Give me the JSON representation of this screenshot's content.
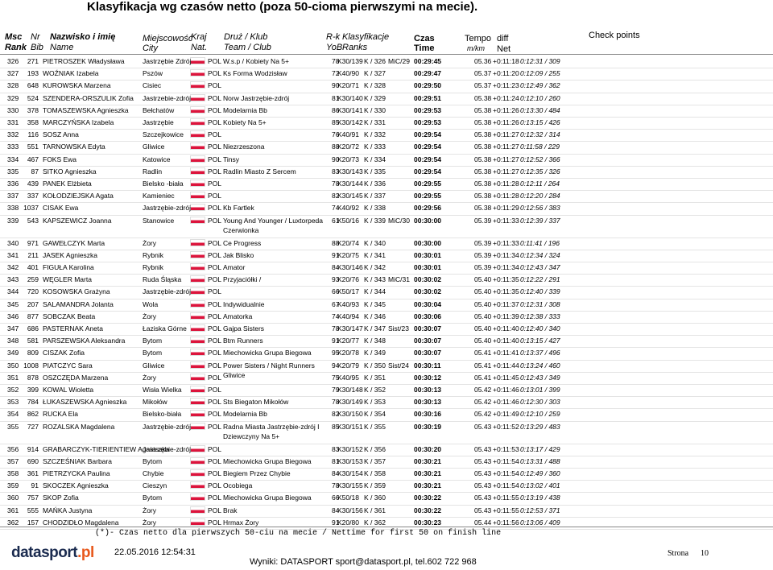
{
  "header": {
    "title": "Klasyfikacja wg czasów netto (poza 50-cioma pierwszymi na mecie).",
    "columns": {
      "msc": "Msc",
      "rank": "Rank",
      "nr": "Nr",
      "bib": "Bib",
      "name_pl": "Nazwisko i imię",
      "name": "Name",
      "city_pl": "Miejscowość",
      "city": "City",
      "nat_pl": "Kraj",
      "nat": "Nat.",
      "team_pl": "Druż / Klub",
      "team": "Team / Club",
      "yob_pl": "R-k",
      "yob": "YoB",
      "ranks_pl": "Klasyfikacje",
      "ranks": "Ranks",
      "time_pl": "Czas",
      "time": "Time",
      "pace_pl": "Tempo",
      "pace": "m/km",
      "diff": "diff",
      "net": "Net",
      "checkpoints": "Check points"
    }
  },
  "rows": [
    {
      "r": "326",
      "b": "271",
      "n": "PIETROSZEK Władysława",
      "c": "Jastrzębie Zdrój",
      "nat": "POL",
      "t": "W.s.p / Kobiety Na 5+",
      "y": "78",
      "k": "K30/139",
      "o": "K / 326",
      "x": "MiC/29",
      "tm": "00:29:45",
      "p": "05.36",
      "d": "+0:11:18",
      "net": "0:12:31 / 309"
    },
    {
      "r": "327",
      "b": "193",
      "n": "WOŹNIAK Izabela",
      "c": "Pszów",
      "nat": "POL",
      "t": "Ks Forma Wodzisław",
      "y": "72",
      "k": "K40/90",
      "o": "K / 327",
      "tm": "00:29:47",
      "p": "05.37",
      "d": "+0:11:20",
      "net": "0:12:09 / 255"
    },
    {
      "r": "328",
      "b": "648",
      "n": "KUROWSKA Marzena",
      "c": "Cisiec",
      "nat": "POL",
      "y": "90",
      "k": "K20/71",
      "o": "K / 328",
      "tm": "00:29:50",
      "p": "05.37",
      "d": "+0:11:23",
      "net": "0:12:49 / 362"
    },
    {
      "r": "329",
      "b": "524",
      "n": "SZENDERA-ORSZULIK Zofia",
      "c": "Jastrzebie-zdrój",
      "nat": "POL",
      "t": "Norw Jastrzębie-zdrój",
      "y": "81",
      "k": "K30/140",
      "o": "K / 329",
      "tm": "00:29:51",
      "p": "05.38",
      "d": "+0:11:24",
      "net": "0:12:10 / 260"
    },
    {
      "r": "330",
      "b": "378",
      "n": "TOMASZEWSKA Agnieszka",
      "c": "Bełchatów",
      "nat": "POL",
      "t": "Modelarnia Bb",
      "y": "86",
      "k": "K30/141",
      "o": "K / 330",
      "tm": "00:29:53",
      "p": "05.38",
      "d": "+0:11:26",
      "net": "0:13:30 / 484"
    },
    {
      "r": "331",
      "b": "358",
      "n": "MARCZYŃSKA Izabela",
      "c": "Jastrzębie",
      "nat": "POL",
      "t": "Kobiety Na 5+",
      "y": "85",
      "k": "K30/142",
      "o": "K / 331",
      "tm": "00:29:53",
      "p": "05.38",
      "d": "+0:11:26",
      "net": "0:13:15 / 426"
    },
    {
      "r": "332",
      "b": "116",
      "n": "SOSZ Anna",
      "c": "Szczejkowice",
      "nat": "POL",
      "y": "76",
      "k": "K40/91",
      "o": "K / 332",
      "tm": "00:29:54",
      "p": "05.38",
      "d": "+0:11:27",
      "net": "0:12:32 / 314"
    },
    {
      "r": "333",
      "b": "551",
      "n": "TARNOWSKA Edyta",
      "c": "Gliwice",
      "nat": "POL",
      "t": "Niezrzeszona",
      "y": "88",
      "k": "K20/72",
      "o": "K / 333",
      "tm": "00:29:54",
      "p": "05.38",
      "d": "+0:11:27",
      "net": "0:11:58 / 229"
    },
    {
      "r": "334",
      "b": "467",
      "n": "FOKS Ewa",
      "c": "Katowice",
      "nat": "POL",
      "t": "Tinsy",
      "y": "90",
      "k": "K20/73",
      "o": "K / 334",
      "tm": "00:29:54",
      "p": "05.38",
      "d": "+0:11:27",
      "net": "0:12:52 / 366"
    },
    {
      "r": "335",
      "b": "87",
      "n": "SITKO Agnieszka",
      "c": "Radlin",
      "nat": "POL",
      "t": "Radlin Miasto Z Sercem",
      "y": "83",
      "k": "K30/143",
      "o": "K / 335",
      "tm": "00:29:54",
      "p": "05.38",
      "d": "+0:11:27",
      "net": "0:12:35 / 326"
    },
    {
      "r": "336",
      "b": "439",
      "n": "PANEK Elżbieta",
      "c": "Bielsko -biała",
      "nat": "POL",
      "y": "78",
      "k": "K30/144",
      "o": "K / 336",
      "tm": "00:29:55",
      "p": "05.38",
      "d": "+0:11:28",
      "net": "0:12:11 / 264"
    },
    {
      "r": "337",
      "b": "337",
      "n": "KOŁODZIEJSKA Agata",
      "c": "Kamieniec",
      "nat": "POL",
      "y": "82",
      "k": "K30/145",
      "o": "K / 337",
      "tm": "00:29:55",
      "p": "05.38",
      "d": "+0:11:28",
      "net": "0:12:20 / 284"
    },
    {
      "r": "338",
      "b": "1037",
      "n": "CISAK Ewa",
      "c": "Jastrzębie-zdrój",
      "nat": "POL",
      "t": "Kb Fartlek",
      "y": "74",
      "k": "K40/92",
      "o": "K / 338",
      "tm": "00:29:56",
      "p": "05.38",
      "d": "+0:11:29",
      "net": "0:12:56 / 383"
    },
    {
      "r": "339",
      "b": "543",
      "n": "KAPSZEWICZ Joanna",
      "c": "Stanowice",
      "nat": "POL",
      "t": "Young And Younger / Luxtorpeda Czerwionka",
      "y": "61",
      "k": "K50/16",
      "o": "K / 339",
      "x": "MiC/30",
      "tm": "00:30:00",
      "p": "05.39",
      "d": "+0:11:33",
      "net": "0:12:39 / 337"
    },
    {
      "r": "340",
      "b": "971",
      "n": "GAWEŁCZYK Marta",
      "c": "Żory",
      "nat": "POL",
      "t": "Ce Progress",
      "y": "88",
      "k": "K20/74",
      "o": "K / 340",
      "tm": "00:30:00",
      "p": "05.39",
      "d": "+0:11:33",
      "net": "0:11:41 / 196"
    },
    {
      "r": "341",
      "b": "211",
      "n": "JASEK Agnieszka",
      "c": "Rybnik",
      "nat": "POL",
      "t": "Jak Blisko",
      "y": "91",
      "k": "K20/75",
      "o": "K / 341",
      "tm": "00:30:01",
      "p": "05.39",
      "d": "+0:11:34",
      "net": "0:12:34 / 324"
    },
    {
      "r": "342",
      "b": "401",
      "n": "FIGUŁA Karolina",
      "c": "Rybnik",
      "nat": "POL",
      "t": "Amator",
      "y": "84",
      "k": "K30/146",
      "o": "K / 342",
      "tm": "00:30:01",
      "p": "05.39",
      "d": "+0:11:34",
      "net": "0:12:43 / 347"
    },
    {
      "r": "343",
      "b": "259",
      "n": "WĘGLER Marta",
      "c": "Ruda Śląska",
      "nat": "POL",
      "t": "Przyjaciółki /",
      "y": "93",
      "k": "K20/76",
      "o": "K / 343",
      "x": "MiC/31",
      "tm": "00:30:02",
      "p": "05.40",
      "d": "+0:11:35",
      "net": "0:12:22 / 291"
    },
    {
      "r": "344",
      "b": "720",
      "n": "KOSOWSKA Grażyna",
      "c": "Jastrzębie-zdrój",
      "nat": "POL",
      "y": "66",
      "k": "K50/17",
      "o": "K / 344",
      "tm": "00:30:02",
      "p": "05.40",
      "d": "+0:11:35",
      "net": "0:12:40 / 339"
    },
    {
      "r": "345",
      "b": "207",
      "n": "SALAMANDRA Jolanta",
      "c": "Wola",
      "nat": "POL",
      "t": "Indywidualnie",
      "y": "67",
      "k": "K40/93",
      "o": "K / 345",
      "tm": "00:30:04",
      "p": "05.40",
      "d": "+0:11:37",
      "net": "0:12:31 / 308"
    },
    {
      "r": "346",
      "b": "877",
      "n": "SOBCZAK Beata",
      "c": "Żory",
      "nat": "POL",
      "t": "Amatorka",
      "y": "74",
      "k": "K40/94",
      "o": "K / 346",
      "tm": "00:30:06",
      "p": "05.40",
      "d": "+0:11:39",
      "net": "0:12:38 / 333"
    },
    {
      "r": "347",
      "b": "686",
      "n": "PASTERNAK Aneta",
      "c": "Łaziska Górne",
      "nat": "POL",
      "t": "Gajpa Sisters",
      "y": "78",
      "k": "K30/147",
      "o": "K / 347",
      "x": "Sist/23",
      "tm": "00:30:07",
      "p": "05.40",
      "d": "+0:11:40",
      "net": "0:12:40 / 340"
    },
    {
      "r": "348",
      "b": "581",
      "n": "PARSZEWSKA Aleksandra",
      "c": "Bytom",
      "nat": "POL",
      "t": "Btm Runners",
      "y": "91",
      "k": "K20/77",
      "o": "K / 348",
      "tm": "00:30:07",
      "p": "05.40",
      "d": "+0:11:40",
      "net": "0:13:15 / 427"
    },
    {
      "r": "349",
      "b": "809",
      "n": "CISZAK Zofia",
      "c": "Bytom",
      "nat": "POL",
      "t": "Miechowicka Grupa Biegowa",
      "y": "95",
      "k": "K20/78",
      "o": "K / 349",
      "tm": "00:30:07",
      "p": "05.41",
      "d": "+0:11:41",
      "net": "0:13:37 / 496"
    },
    {
      "r": "350",
      "b": "1008",
      "n": "PIATCZYC Sara",
      "c": "Gliwice",
      "nat": "POL",
      "t": "Power Sisters / Night Runners Gliwice",
      "y": "94",
      "k": "K20/79",
      "o": "K / 350",
      "x": "Sist/24",
      "tm": "00:30:11",
      "p": "05.41",
      "d": "+0:11:44",
      "net": "0:13:24 / 460"
    },
    {
      "r": "351",
      "b": "878",
      "n": "OSZCZĘDA Marzena",
      "c": "Żory",
      "nat": "POL",
      "y": "75",
      "k": "K40/95",
      "o": "K / 351",
      "tm": "00:30:12",
      "p": "05.41",
      "d": "+0:11:45",
      "net": "0:12:43 / 349"
    },
    {
      "r": "352",
      "b": "399",
      "n": "KOWAL Wioletta",
      "c": "Wisła Wielka",
      "nat": "POL",
      "y": "79",
      "k": "K30/148",
      "o": "K / 352",
      "tm": "00:30:13",
      "p": "05.42",
      "d": "+0:11:46",
      "net": "0:13:01 / 399"
    },
    {
      "r": "353",
      "b": "784",
      "n": "ŁUKASZEWSKA Agnieszka",
      "c": "Mikołów",
      "nat": "POL",
      "t": "Sts Biegaton Mikołów",
      "y": "78",
      "k": "K30/149",
      "o": "K / 353",
      "tm": "00:30:13",
      "p": "05.42",
      "d": "+0:11:46",
      "net": "0:12:30 / 303"
    },
    {
      "r": "354",
      "b": "862",
      "n": "RUCKA Ela",
      "c": "Bielsko-biała",
      "nat": "POL",
      "t": "Modelarnia Bb",
      "y": "82",
      "k": "K30/150",
      "o": "K / 354",
      "tm": "00:30:16",
      "p": "05.42",
      "d": "+0:11:49",
      "net": "0:12:10 / 259"
    },
    {
      "r": "355",
      "b": "727",
      "n": "ROZALSKA Magdalena",
      "c": "Jastrzębie-zdrój",
      "nat": "POL",
      "t": "Radna Miasta Jastrzębie-zdrój I Dziewczyny Na 5+",
      "y": "85",
      "k": "K30/151",
      "o": "K / 355",
      "tm": "00:30:19",
      "p": "05.43",
      "d": "+0:11:52",
      "net": "0:13:29 / 483"
    },
    {
      "r": "356",
      "b": "914",
      "n": "GRABARCZYK-TIERIENTIEW Agnieszka",
      "c": "Jastrzębie-zdrój",
      "nat": "POL",
      "y": "83",
      "k": "K30/152",
      "o": "K / 356",
      "tm": "00:30:20",
      "p": "05.43",
      "d": "+0:11:53",
      "net": "0:13:17 / 429"
    },
    {
      "r": "357",
      "b": "690",
      "n": "SZCZEŚNIAK Barbara",
      "c": "Bytom",
      "nat": "POL",
      "t": "Miechowicka Grupa Biegowa",
      "y": "81",
      "k": "K30/153",
      "o": "K / 357",
      "tm": "00:30:21",
      "p": "05.43",
      "d": "+0:11:54",
      "net": "0:13:31 / 488"
    },
    {
      "r": "358",
      "b": "361",
      "n": "PIETRZYCKA Paulina",
      "c": "Chybie",
      "nat": "POL",
      "t": "Biegiem Przez Chybie",
      "y": "84",
      "k": "K30/154",
      "o": "K / 358",
      "tm": "00:30:21",
      "p": "05.43",
      "d": "+0:11:54",
      "net": "0:12:49 / 360"
    },
    {
      "r": "359",
      "b": "91",
      "n": "SKOCZEK Agnieszka",
      "c": "Cieszyn",
      "nat": "POL",
      "t": "Ocobiega",
      "y": "78",
      "k": "K30/155",
      "o": "K / 359",
      "tm": "00:30:21",
      "p": "05.43",
      "d": "+0:11:54",
      "net": "0:13:02 / 401"
    },
    {
      "r": "360",
      "b": "757",
      "n": "SKOP Zofia",
      "c": "Bytom",
      "nat": "POL",
      "t": "Miechowicka Grupa Biegowa",
      "y": "66",
      "k": "K50/18",
      "o": "K / 360",
      "tm": "00:30:22",
      "p": "05.43",
      "d": "+0:11:55",
      "net": "0:13:19 / 438"
    },
    {
      "r": "361",
      "b": "555",
      "n": "MAŃKA Justyna",
      "c": "Żory",
      "nat": "POL",
      "t": "Brak",
      "y": "84",
      "k": "K30/156",
      "o": "K / 361",
      "tm": "00:30:22",
      "p": "05.43",
      "d": "+0:11:55",
      "net": "0:12:53 / 371"
    },
    {
      "r": "362",
      "b": "157",
      "n": "CHODZIDŁO Magdalena",
      "c": "Żory",
      "nat": "POL",
      "t": "Hrmax Żory",
      "y": "91",
      "k": "K20/80",
      "o": "K / 362",
      "tm": "00:30:23",
      "p": "05.44",
      "d": "+0:11:56",
      "net": "0:13:06 / 409"
    }
  ],
  "footer": {
    "note": "(*)- Czas netto dla pierwszych 50-ciu na mecie / Nettime for first 50 on finish line",
    "logo_main": "datasport",
    "logo_tld": ".pl",
    "printed": "22.05.2016 12:54:31",
    "contact": "Wyniki: DATASPORT sport@datasport.pl, tel.602 722 968",
    "page_label": "Strona",
    "page_number": "10"
  }
}
